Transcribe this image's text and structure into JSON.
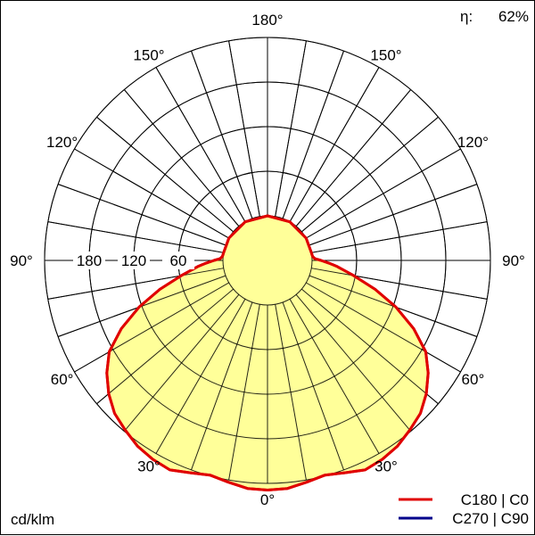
{
  "efficiency": {
    "symbol": "η:",
    "value": "62%"
  },
  "unit_label": "cd/klm",
  "chart_data": {
    "type": "polar",
    "angle_labels": [
      {
        "angle": 0,
        "text": "0°",
        "side": "bottom"
      },
      {
        "angle": 30,
        "text": "30°",
        "side": "left"
      },
      {
        "angle": 30,
        "text": "30°",
        "side": "right"
      },
      {
        "angle": 60,
        "text": "60°",
        "side": "left"
      },
      {
        "angle": 60,
        "text": "60°",
        "side": "right"
      },
      {
        "angle": 90,
        "text": "90°",
        "side": "left"
      },
      {
        "angle": 90,
        "text": "90°",
        "side": "right"
      },
      {
        "angle": 120,
        "text": "120°",
        "side": "left"
      },
      {
        "angle": 120,
        "text": "120°",
        "side": "right"
      },
      {
        "angle": 150,
        "text": "150°",
        "side": "left"
      },
      {
        "angle": 150,
        "text": "150°",
        "side": "right"
      },
      {
        "angle": 180,
        "text": "180°",
        "side": "top"
      }
    ],
    "radial_ticks": [
      {
        "value": 60,
        "text": "60"
      },
      {
        "value": 120,
        "text": "120"
      },
      {
        "value": 180,
        "text": "180"
      }
    ],
    "radial_range": [
      -60,
      240
    ],
    "angle_step": 10,
    "series": [
      {
        "name": "C180 | C0",
        "color": "#e00000",
        "fill": "#ffff99",
        "points": [
          [
            0,
            249
          ],
          [
            5,
            248
          ],
          [
            10,
            243
          ],
          [
            15,
            239
          ],
          [
            20,
            244
          ],
          [
            25,
            251
          ],
          [
            30,
            249
          ],
          [
            35,
            245
          ],
          [
            40,
            238
          ],
          [
            45,
            231
          ],
          [
            50,
            219
          ],
          [
            55,
            204
          ],
          [
            60,
            186
          ],
          [
            65,
            157
          ],
          [
            70,
            124
          ],
          [
            75,
            90
          ],
          [
            80,
            58
          ],
          [
            85,
            34
          ],
          [
            87,
            25
          ],
          [
            90,
            12
          ],
          [
            92,
            4
          ],
          [
            95,
            1
          ],
          [
            100,
            0
          ],
          [
            120,
            0
          ],
          [
            150,
            0
          ],
          [
            180,
            0
          ]
        ]
      },
      {
        "name": "C270 | C90",
        "color": "#00008b",
        "points": [
          [
            0,
            249
          ],
          [
            5,
            248
          ],
          [
            10,
            243
          ],
          [
            15,
            239
          ],
          [
            20,
            244
          ],
          [
            25,
            251
          ],
          [
            30,
            249
          ],
          [
            35,
            245
          ],
          [
            40,
            238
          ],
          [
            45,
            231
          ],
          [
            50,
            219
          ],
          [
            55,
            204
          ],
          [
            60,
            186
          ],
          [
            65,
            157
          ],
          [
            70,
            124
          ],
          [
            75,
            90
          ],
          [
            80,
            58
          ],
          [
            85,
            34
          ],
          [
            87,
            25
          ],
          [
            90,
            12
          ],
          [
            92,
            4
          ],
          [
            95,
            1
          ],
          [
            100,
            0
          ],
          [
            120,
            0
          ],
          [
            150,
            0
          ],
          [
            180,
            0
          ]
        ]
      }
    ]
  }
}
